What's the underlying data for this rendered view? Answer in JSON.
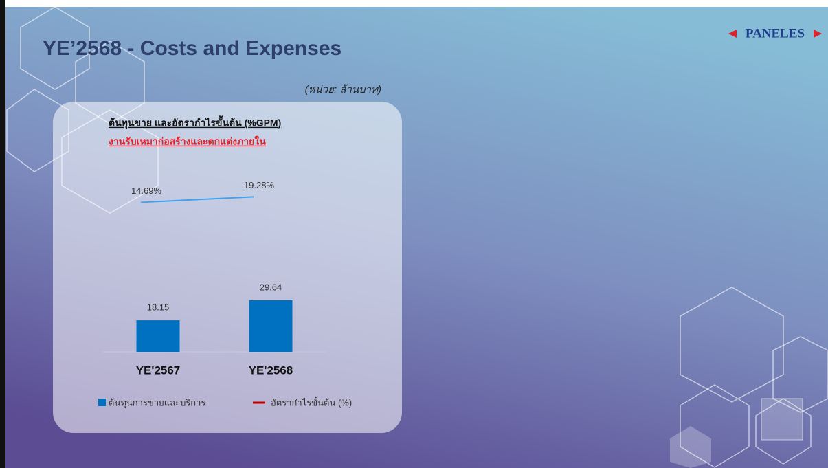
{
  "logo": "PANELES",
  "title": "YE’2568 - Costs and Expenses",
  "unit_note": "(หน่วย: ล้านบาท)",
  "chart_data": {
    "type": "bar_line",
    "title": "ต้นทุนขาย และอัตรากำไรขั้นต้น (%GPM)",
    "subtitle": "งานรับเหมาก่อสร้างและตกแต่งภายใน",
    "categories": [
      "YE'2567",
      "YE'2568"
    ],
    "ylim": [
      0,
      100
    ],
    "y2lim": [
      -110,
      35
    ],
    "series": [
      {
        "name": "ต้นทุนการขายและบริการ",
        "type": "bar",
        "color": "#0070c0",
        "values": [
          18.15,
          29.64
        ]
      },
      {
        "name": "อัตรากำไรขั้นต้น (%)",
        "type": "line",
        "axis": "y2",
        "color": "#c00000",
        "line_color": "#3ea3ef",
        "values": [
          14.69,
          19.28
        ],
        "value_labels": [
          "14.69%",
          "19.28%"
        ]
      }
    ]
  }
}
